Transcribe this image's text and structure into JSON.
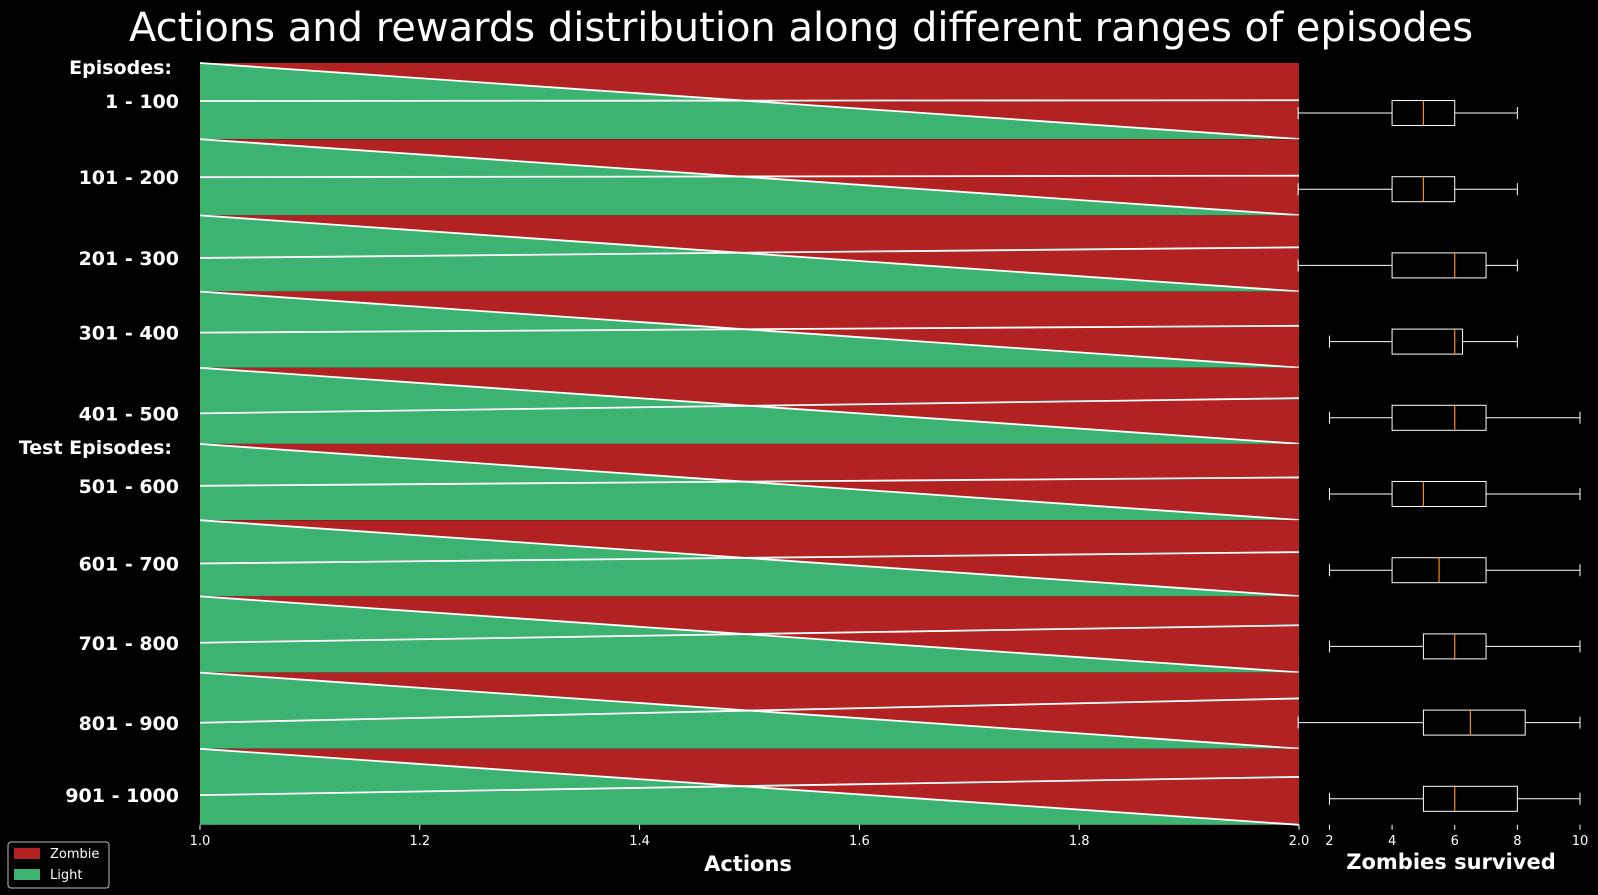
{
  "chart_data": [
    {
      "type": "area",
      "title": "Actions and rewards distribution along different ranges of episodes",
      "xlabel": "Actions",
      "xlim": [
        1.0,
        2.0
      ],
      "xticks": [
        "1.0",
        "1.2",
        "1.4",
        "1.6",
        "1.8",
        "2.0"
      ],
      "group_labels": [
        {
          "text": "Episodes:",
          "before_row": 0
        },
        {
          "text": "Test Episodes:",
          "before_row": 5
        }
      ],
      "legend": {
        "placement": "bottom-left",
        "entries": [
          {
            "name": "Zombie",
            "color": "#b22222"
          },
          {
            "name": "Light",
            "color": "#3cb371"
          }
        ]
      },
      "colors": {
        "light": "#3cb371",
        "zombie": "#b22222",
        "line": "#ffffff"
      },
      "rows": [
        {
          "label": "1 - 100",
          "light_at_1": 1.0,
          "light_at_2": 0.0,
          "zombie_at_1": 0.0,
          "zombie_at_2": 1.0,
          "split_at_1": 0.5,
          "split_at_2": 0.51
        },
        {
          "label": "101 - 200",
          "light_at_1": 1.0,
          "light_at_2": 0.0,
          "zombie_at_1": 0.0,
          "zombie_at_2": 1.0,
          "split_at_1": 0.5,
          "split_at_2": 0.52
        },
        {
          "label": "201 - 300",
          "light_at_1": 1.0,
          "light_at_2": 0.0,
          "zombie_at_1": 0.0,
          "zombie_at_2": 1.0,
          "split_at_1": 0.44,
          "split_at_2": 0.58
        },
        {
          "label": "301 - 400",
          "light_at_1": 1.0,
          "light_at_2": 0.0,
          "zombie_at_1": 0.0,
          "zombie_at_2": 1.0,
          "split_at_1": 0.46,
          "split_at_2": 0.55
        },
        {
          "label": "401 - 500",
          "light_at_1": 1.0,
          "light_at_2": 0.0,
          "zombie_at_1": 0.0,
          "zombie_at_2": 1.0,
          "split_at_1": 0.4,
          "split_at_2": 0.6
        },
        {
          "label": "501 - 600",
          "light_at_1": 1.0,
          "light_at_2": 0.0,
          "zombie_at_1": 0.0,
          "zombie_at_2": 1.0,
          "split_at_1": 0.45,
          "split_at_2": 0.56
        },
        {
          "label": "601 - 700",
          "light_at_1": 1.0,
          "light_at_2": 0.0,
          "zombie_at_1": 0.0,
          "zombie_at_2": 1.0,
          "split_at_1": 0.43,
          "split_at_2": 0.58
        },
        {
          "label": "701 - 800",
          "light_at_1": 1.0,
          "light_at_2": 0.0,
          "zombie_at_1": 0.0,
          "zombie_at_2": 1.0,
          "split_at_1": 0.39,
          "split_at_2": 0.62
        },
        {
          "label": "801 - 900",
          "light_at_1": 1.0,
          "light_at_2": 0.0,
          "zombie_at_1": 0.0,
          "zombie_at_2": 1.0,
          "split_at_1": 0.34,
          "split_at_2": 0.66
        },
        {
          "label": "901 - 1000",
          "light_at_1": 1.0,
          "light_at_2": 0.0,
          "zombie_at_1": 0.0,
          "zombie_at_2": 1.0,
          "split_at_1": 0.39,
          "split_at_2": 0.63
        }
      ]
    },
    {
      "type": "box",
      "xlabel": "Zombies survived",
      "xlim": [
        0.9,
        10.0
      ],
      "xticks": [
        "2",
        "4",
        "6",
        "8",
        "10"
      ],
      "colors": {
        "box": "#ffffff",
        "median": "#ff8c00"
      },
      "boxes": [
        {
          "label": "1 - 100",
          "min": 1,
          "q1": 4,
          "median": 5,
          "q3": 6,
          "max": 8
        },
        {
          "label": "101 - 200",
          "min": 1,
          "q1": 4,
          "median": 5,
          "q3": 6,
          "max": 8
        },
        {
          "label": "201 - 300",
          "min": 1,
          "q1": 4,
          "median": 6,
          "q3": 7,
          "max": 8
        },
        {
          "label": "301 - 400",
          "min": 2,
          "q1": 4,
          "median": 6,
          "q3": 6.25,
          "max": 8
        },
        {
          "label": "401 - 500",
          "min": 2,
          "q1": 4,
          "median": 6,
          "q3": 7,
          "max": 10
        },
        {
          "label": "501 - 600",
          "min": 2,
          "q1": 4,
          "median": 5,
          "q3": 7,
          "max": 10
        },
        {
          "label": "601 - 700",
          "min": 2,
          "q1": 4,
          "median": 5.5,
          "q3": 7,
          "max": 10
        },
        {
          "label": "701 - 800",
          "min": 2,
          "q1": 5,
          "median": 6,
          "q3": 7,
          "max": 10
        },
        {
          "label": "801 - 900",
          "min": 1,
          "q1": 5,
          "median": 6.5,
          "q3": 8.25,
          "max": 10
        },
        {
          "label": "901 - 1000",
          "min": 2,
          "q1": 5,
          "median": 6,
          "q3": 8,
          "max": 10
        }
      ]
    }
  ]
}
